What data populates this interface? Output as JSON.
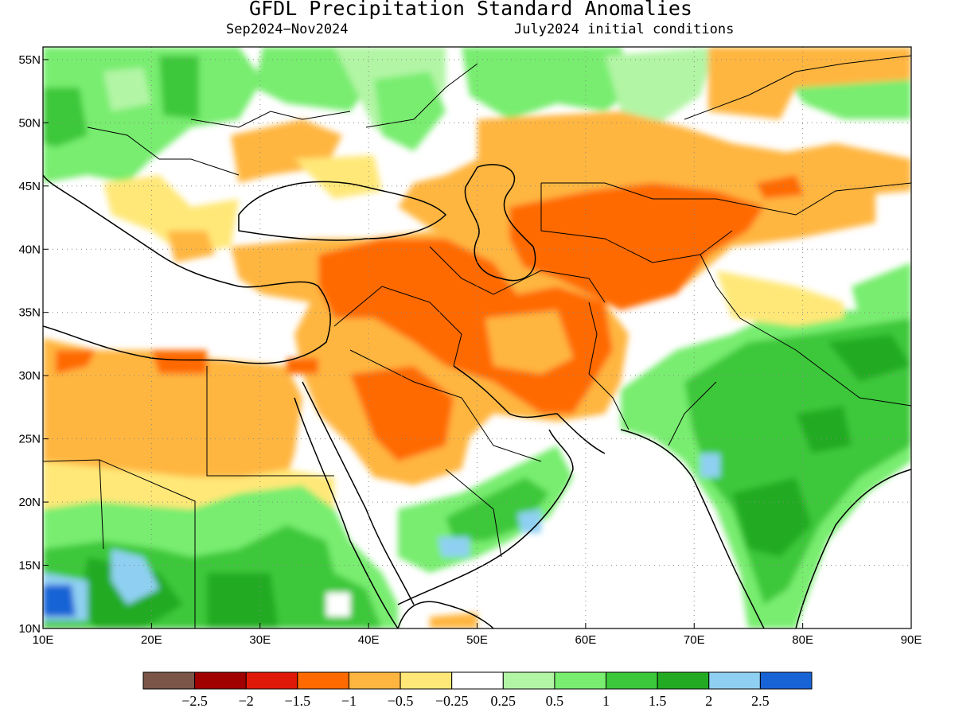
{
  "title": "GFDL Precipitation Standard Anomalies",
  "period": "Sep2024−Nov2024",
  "initial_conditions": "July2024 initial conditions",
  "lon_ticks": [
    "10E",
    "20E",
    "30E",
    "40E",
    "50E",
    "60E",
    "70E",
    "80E",
    "90E"
  ],
  "lat_ticks": [
    "55N",
    "50N",
    "45N",
    "40N",
    "35N",
    "30N",
    "25N",
    "20N",
    "15N",
    "10N"
  ],
  "colorbar": {
    "colors": [
      "#7a5548",
      "#a00000",
      "#e01808",
      "#ff6a00",
      "#ffb641",
      "#ffe878",
      "#ffffff",
      "#b2f5a5",
      "#78ed6f",
      "#3cc83b",
      "#22ab22",
      "#8fd0f2",
      "#1863d6"
    ],
    "labels": [
      "−2.5",
      "−2",
      "−1.5",
      "−1",
      "−0.5",
      "−0.25",
      "0.25",
      "0.5",
      "1",
      "1.5",
      "2",
      "2.5"
    ]
  },
  "chart_data": {
    "type": "heatmap",
    "variable": "Precipitation Standard Anomalies",
    "lon_range": [
      10,
      90
    ],
    "lat_range": [
      10,
      56
    ],
    "levels": [
      -2.5,
      -2,
      -1.5,
      -1,
      -0.5,
      -0.25,
      0.25,
      0.5,
      1,
      1.5,
      2,
      2.5
    ],
    "grid": "dotted",
    "colorbar_position": "bottom"
  }
}
